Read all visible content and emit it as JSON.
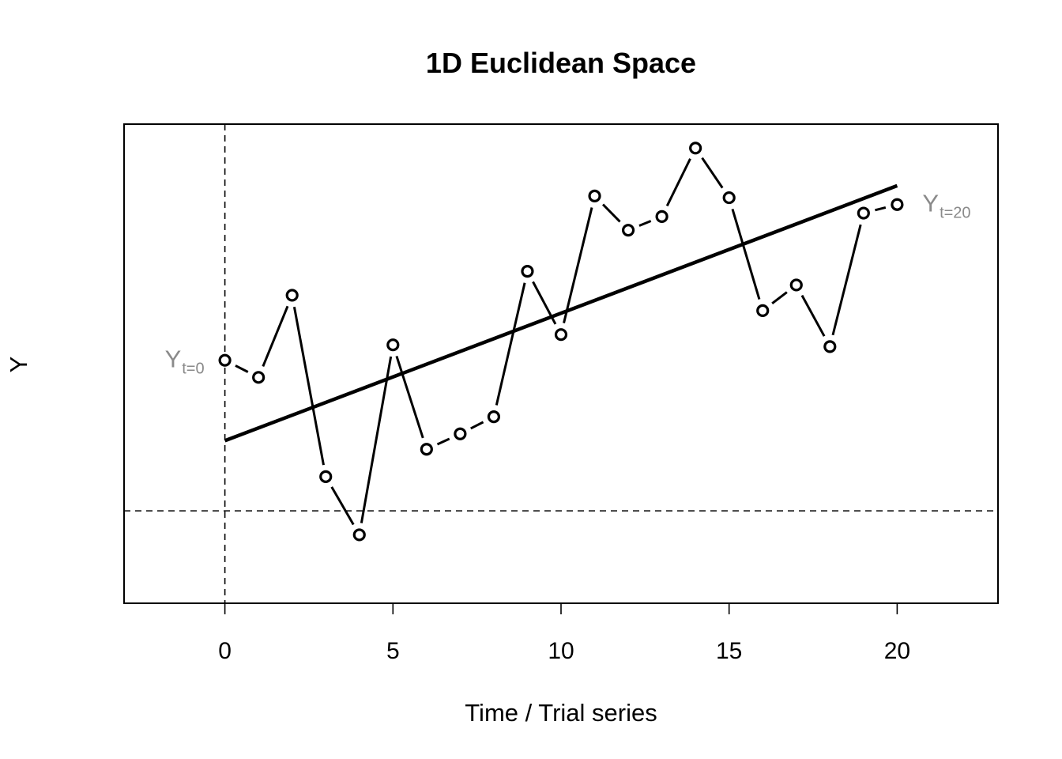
{
  "chart_data": {
    "type": "line",
    "title": "1D Euclidean Space",
    "xlabel": "Time / Trial series",
    "ylabel": "Y",
    "xlim": [
      -3,
      23
    ],
    "ylim": [
      -9.8,
      18.2
    ],
    "xticks": [
      "0",
      "5",
      "10",
      "15",
      "20"
    ],
    "yticks": [],
    "grid": false,
    "series": [
      {
        "x": [
          0,
          1,
          2,
          3,
          4,
          5,
          6,
          7,
          8,
          9,
          10,
          11,
          12,
          13,
          14,
          15,
          16,
          17,
          18,
          19,
          20
        ],
        "values": [
          4.4,
          3.4,
          8.2,
          -2.4,
          -5.8,
          5.3,
          -0.8,
          0.1,
          1.1,
          9.6,
          5.9,
          14.0,
          12.0,
          12.8,
          16.8,
          13.9,
          7.3,
          8.8,
          5.2,
          13.0,
          13.5
        ]
      }
    ],
    "trend_line": {
      "x": [
        0,
        20
      ],
      "y": [
        -0.3,
        14.6
      ]
    },
    "reference_lines": {
      "vertical_x": 0,
      "horizontal_y": -4.4
    },
    "annotations": [
      {
        "base": "Y",
        "subscript": "t=0",
        "x": 0,
        "y": 4.4,
        "side": "left"
      },
      {
        "base": "Y",
        "subscript": "t=20",
        "x": 20,
        "y": 13.5,
        "side": "right"
      }
    ]
  }
}
